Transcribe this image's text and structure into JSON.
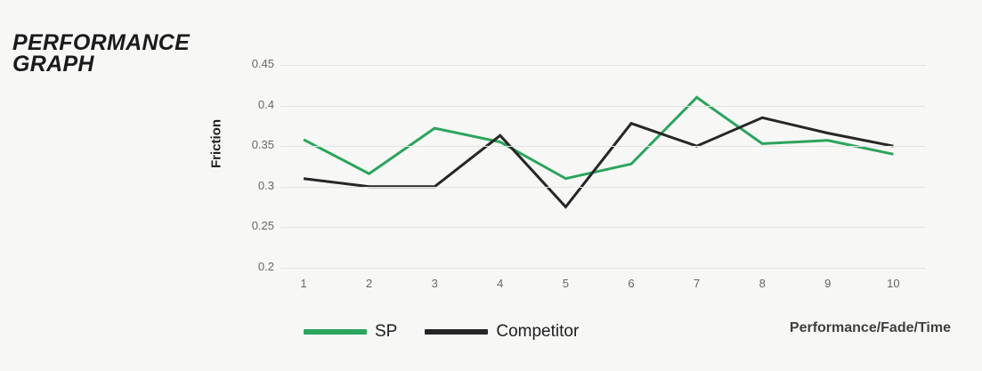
{
  "page": {
    "title_line1": "PERFORMANCE",
    "title_line2": "GRAPH",
    "footer_label": "Performance/Fade/Time"
  },
  "colors": {
    "background": "#f7f7f6",
    "gridline": "#e3e3e2",
    "sp_green": "#2ba45c",
    "competitor_black": "#262626"
  },
  "chart_data": {
    "type": "line",
    "title": "Performance Graph",
    "ylabel": "Friction",
    "xlabel": "Performance/Fade/Time",
    "ylim": [
      0.2,
      0.45
    ],
    "yticks": [
      0.45,
      0.4,
      0.35,
      0.3,
      0.25,
      0.2
    ],
    "grid": true,
    "legend_position": "bottom",
    "x": [
      1,
      2,
      3,
      4,
      5,
      6,
      7,
      8,
      9,
      10
    ],
    "series": [
      {
        "name": "SP",
        "color": "#2ba45c",
        "values": [
          0.358,
          0.316,
          0.372,
          0.355,
          0.31,
          0.328,
          0.41,
          0.353,
          0.357,
          0.34
        ]
      },
      {
        "name": "Competitor",
        "color": "#262626",
        "values": [
          0.31,
          0.3,
          0.3,
          0.363,
          0.275,
          0.378,
          0.35,
          0.385,
          0.366,
          0.35
        ]
      }
    ]
  }
}
